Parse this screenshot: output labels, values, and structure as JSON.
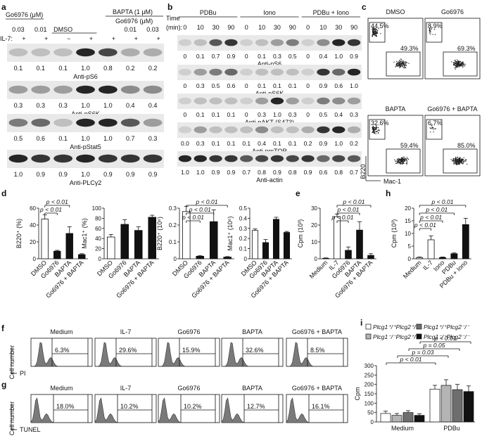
{
  "panel_a": {
    "label": "a",
    "drug1": "Go6976 (μM)",
    "drug2": "BAPTA (1 μM)",
    "drug3": "Go6976 (μM)",
    "dmso": "DMSO",
    "conc_left": [
      "0.03",
      "0.01"
    ],
    "conc_right": [
      "0.01",
      "0.03"
    ],
    "il7_label": "IL-7:",
    "il7_signs": [
      "+",
      "+",
      "−",
      "+",
      "+",
      "+",
      "+"
    ],
    "blots": [
      {
        "name": "Anti-pS6",
        "values": [
          "0.1",
          "0.1",
          "0.1",
          "1.0",
          "0.8",
          "0.2",
          "0.2"
        ]
      },
      {
        "name": "Anti-pS6K",
        "values": [
          "0.3",
          "0.3",
          "0.3",
          "1.0",
          "1.0",
          "0.4",
          "0.4"
        ]
      },
      {
        "name": "Anti-pStat5",
        "values": [
          "0.5",
          "0.6",
          "0.1",
          "1.0",
          "1.0",
          "0.7",
          "0.3"
        ]
      },
      {
        "name": "Anti-PLCγ2",
        "values": [
          "1.0",
          "0.9",
          "0.9",
          "1.0",
          "0.9",
          "0.9",
          "0.9"
        ]
      }
    ]
  },
  "panel_b": {
    "label": "b",
    "time_label": "Time",
    "min_label": "(min):",
    "groups": [
      "PDBu",
      "Iono",
      "PDBu + Iono"
    ],
    "times": [
      "0",
      "10",
      "30",
      "90",
      "0",
      "10",
      "30",
      "90",
      "0",
      "10",
      "30",
      "90"
    ],
    "blots": [
      {
        "name": "Anti-pS6",
        "values": [
          "0",
          "0.1",
          "0.7",
          "0.9",
          "0",
          "0.1",
          "0.3",
          "0.5",
          "0",
          "0.4",
          "1.0",
          "0.9"
        ]
      },
      {
        "name": "Anti-pS6K",
        "values": [
          "0",
          "0.3",
          "0.5",
          "0.6",
          "0",
          "0.1",
          "0.1",
          "0.1",
          "0",
          "0.9",
          "0.6",
          "1.0"
        ]
      },
      {
        "name": "Anti-pAKT (S473)",
        "values": [
          "0",
          "0.1",
          "0.1",
          "0.1",
          "0",
          "0.3",
          "1.0",
          "0.3",
          "0",
          "0.5",
          "0.4",
          "0.3"
        ]
      },
      {
        "name": "Anti-pmTOR",
        "values": [
          "0.0",
          "0.3",
          "0.1",
          "0.1",
          "0.1",
          "0.4",
          "0.1",
          "0.1",
          "0.2",
          "0.9",
          "1.0",
          "0.2"
        ]
      },
      {
        "name": "Anti-actin",
        "values": [
          "1.0",
          "1.0",
          "0.9",
          "0.9",
          "0.7",
          "0.8",
          "0.9",
          "0.8",
          "0.9",
          "0.6",
          "0.8",
          "0.7"
        ]
      }
    ]
  },
  "panel_c": {
    "label": "c",
    "y_axis": "B220",
    "x_axis": "Mac-1",
    "plots": [
      {
        "title": "DMSO",
        "top_left": "44.5%",
        "bottom_right": "49.3%"
      },
      {
        "title": "Go6976",
        "top_left": "8.9%",
        "bottom_right": "69.3%"
      },
      {
        "title": "BAPTA",
        "top_left": "32.6%",
        "bottom_right": "59.4%"
      },
      {
        "title": "Go6976 + BAPTA",
        "top_left": "6.7%",
        "bottom_right": "85.0%"
      }
    ]
  },
  "panel_d": {
    "label": "d"
  },
  "panel_e": {
    "label": "e"
  },
  "panel_h": {
    "label": "h"
  },
  "panel_f": {
    "label": "f",
    "y_axis": "Cell number",
    "x_axis": "PI",
    "plots": [
      {
        "title": "Medium",
        "value": "6.3%"
      },
      {
        "title": "IL-7",
        "value": "29.6%"
      },
      {
        "title": "Go6976",
        "value": "15.9%"
      },
      {
        "title": "BAPTA",
        "value": "32.6%"
      },
      {
        "title": "Go6976 + BAPTA",
        "value": "8.5%"
      }
    ]
  },
  "panel_g": {
    "label": "g",
    "y_axis": "Cell number",
    "x_axis": "TUNEL",
    "plots": [
      {
        "title": "Medium",
        "value": "18.0%"
      },
      {
        "title": "IL-7",
        "value": "10.2%"
      },
      {
        "title": "Go6976",
        "value": "10.2%"
      },
      {
        "title": "BAPTA",
        "value": "12.7%"
      },
      {
        "title": "Go6976 + BAPTA",
        "value": "16.1%"
      }
    ]
  },
  "panel_i": {
    "label": "i"
  },
  "colors": {
    "white_bar": "#ffffff",
    "black_bar": "#111111",
    "light_grey": "#b4b4b4",
    "dark_grey": "#6e6e6e",
    "blot_band": "#1a1a1a"
  },
  "chart_data": [
    {
      "id": "d1",
      "type": "bar",
      "ylabel": "B220⁺ (%)",
      "ylim": [
        0,
        60
      ],
      "yticks": [
        "0",
        "20",
        "40",
        "60"
      ],
      "categories": [
        "DMSO",
        "Go6976",
        "BAPTA",
        "Go6976 + BAPTA"
      ],
      "values": [
        47,
        9,
        30,
        5
      ],
      "errors": [
        5,
        1,
        8,
        1
      ],
      "fills": [
        "white",
        "black",
        "black",
        "black"
      ],
      "annotations": [
        {
          "from": 0,
          "to": 2,
          "text": "p < 0.01"
        },
        {
          "from": 0,
          "to": 1,
          "text": "p < 0.01"
        }
      ]
    },
    {
      "id": "d2",
      "type": "bar",
      "ylabel": "Mac1⁺ (%)",
      "ylim": [
        0,
        100
      ],
      "yticks": [
        "0",
        "20",
        "40",
        "60",
        "80",
        "100"
      ],
      "categories": [
        "DMSO",
        "Go6976",
        "BAPTA",
        "Go6976 + BAPTA"
      ],
      "values": [
        43,
        68,
        56,
        82
      ],
      "errors": [
        5,
        9,
        7,
        4
      ],
      "fills": [
        "white",
        "black",
        "black",
        "black"
      ],
      "annotations": []
    },
    {
      "id": "d3",
      "type": "bar",
      "ylabel": "B220⁺ (10⁶)",
      "ylim": [
        0,
        0.3
      ],
      "yticks": [
        "0",
        "0.1",
        "0.2",
        "0.3"
      ],
      "categories": [
        "DMSO",
        "Go6976",
        "BAPTA",
        "Go6976 + BAPTA"
      ],
      "values": [
        0.28,
        0.015,
        0.22,
        0.01
      ],
      "errors": [
        0.03,
        0.003,
        0.07,
        0.003
      ],
      "fills": [
        "white",
        "black",
        "black",
        "black"
      ],
      "annotations": [
        {
          "from": 0,
          "to": 3,
          "text": "p < 0.01"
        },
        {
          "from": 0,
          "to": 2,
          "text": "p < 0.01"
        },
        {
          "from": 0,
          "to": 1,
          "text": "p < 0.01"
        }
      ]
    },
    {
      "id": "d4",
      "type": "bar",
      "ylabel": "Mac1⁺ (10⁶)",
      "ylim": [
        0,
        0.5
      ],
      "yticks": [
        "0",
        "0.1",
        "0.2",
        "0.3",
        "0.4",
        "0.5"
      ],
      "categories": [
        "DMSO",
        "Go6976",
        "BAPTA",
        "Go6976 + BAPTA"
      ],
      "values": [
        0.28,
        0.16,
        0.39,
        0.26
      ],
      "errors": [
        0.015,
        0.03,
        0.02,
        0.01
      ],
      "fills": [
        "white",
        "black",
        "black",
        "black"
      ],
      "annotations": []
    },
    {
      "id": "e",
      "type": "bar",
      "ylabel": "Cpm (10³)",
      "ylim": [
        0,
        30
      ],
      "yticks": [
        "0",
        "10",
        "20",
        "30"
      ],
      "categories": [
        "Medium",
        "IL-7",
        "Go6976",
        "BAPTA",
        "Go6976 + BAPTA"
      ],
      "values": [
        0.3,
        25,
        5,
        17,
        2
      ],
      "errors": [
        0.2,
        1.5,
        2,
        5,
        1
      ],
      "fills": [
        "white",
        "white",
        "black",
        "black",
        "black"
      ],
      "annotations": [
        {
          "from": 1,
          "to": 4,
          "text": "p < 0.01"
        },
        {
          "from": 1,
          "to": 3,
          "text": "p < 0.01"
        },
        {
          "from": 1,
          "to": 2,
          "text": "p < 0.01"
        }
      ]
    },
    {
      "id": "h",
      "type": "bar",
      "ylabel": "Cpm (10³)",
      "ylim": [
        0,
        20
      ],
      "yticks": [
        "0",
        "5",
        "10",
        "15",
        "20"
      ],
      "categories": [
        "Medium",
        "IL-7",
        "Iono",
        "PDBu",
        "PDBu + Iono"
      ],
      "values": [
        0.5,
        7.5,
        0.5,
        2,
        13.5
      ],
      "errors": [
        0.2,
        1.5,
        0.2,
        0.3,
        2.5
      ],
      "fills": [
        "white",
        "white",
        "black",
        "black",
        "black"
      ],
      "annotations": [
        {
          "from": 0,
          "to": 4,
          "text": "p < 0.01"
        },
        {
          "from": 0,
          "to": 3,
          "text": "p < 0.01"
        },
        {
          "from": 0,
          "to": 2,
          "text": "p < 0.01"
        },
        {
          "from": 0,
          "to": 1,
          "text": "p < 0.01"
        }
      ]
    },
    {
      "id": "i",
      "type": "bar",
      "ylabel": "Cpm",
      "ylim": [
        0,
        300
      ],
      "yticks": [
        "0",
        "50",
        "100",
        "150",
        "200",
        "250",
        "300"
      ],
      "groups": [
        "Medium",
        "PDBu"
      ],
      "series": [
        {
          "name": "Plcg1⁺/⁺Plcg2⁺/⁺",
          "values": [
            45,
            175
          ],
          "errors": [
            12,
            20
          ],
          "fill": "white"
        },
        {
          "name": "Plcg1⁻/⁻Plcg2⁺/⁺",
          "values": [
            35,
            195
          ],
          "errors": [
            10,
            30
          ],
          "fill": "light_grey"
        },
        {
          "name": "Plcg1⁺/⁺Plcg2⁻/⁻",
          "values": [
            50,
            172
          ],
          "errors": [
            10,
            28
          ],
          "fill": "dark_grey"
        },
        {
          "name": "Plcg1⁻/⁻Plcg2⁻/⁻",
          "values": [
            35,
            162
          ],
          "errors": [
            8,
            30
          ],
          "fill": "black"
        }
      ],
      "annotations": [
        "p < 0.01",
        "p = 0.03",
        "p = 0.05",
        "p < 0.01"
      ]
    }
  ]
}
